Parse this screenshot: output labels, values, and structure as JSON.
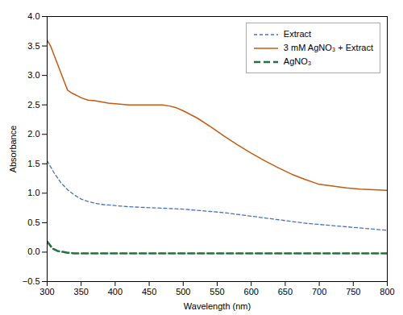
{
  "chart_data": {
    "type": "line",
    "xlabel": "Wavelength (nm)",
    "ylabel": "Absorbance",
    "xlim": [
      300,
      800
    ],
    "ylim": [
      -0.5,
      4
    ],
    "xticks": [
      300,
      350,
      400,
      450,
      500,
      550,
      600,
      650,
      700,
      750,
      800
    ],
    "yticks": [
      {
        "value": -0.5,
        "label": "−0.5"
      },
      {
        "value": 0,
        "label": "0.0"
      },
      0.5,
      {
        "value": 1,
        "label": "1.0"
      },
      1.5,
      {
        "value": 2,
        "label": "2.0"
      },
      2.5,
      {
        "value": 3,
        "label": "3.0"
      },
      3.5,
      {
        "value": 4,
        "label": "4.0"
      }
    ],
    "grid": false,
    "legend": "upper right",
    "series": [
      {
        "name": "Extract",
        "color": "#4472C4",
        "line_style": "dashed",
        "x": [
          300,
          310,
          320,
          330,
          340,
          350,
          360,
          370,
          380,
          390,
          400,
          420,
          440,
          460,
          480,
          500,
          520,
          540,
          560,
          580,
          600,
          620,
          640,
          660,
          680,
          700,
          720,
          740,
          760,
          780,
          800
        ],
        "values": [
          1.55,
          1.35,
          1.18,
          1.06,
          0.97,
          0.9,
          0.86,
          0.83,
          0.81,
          0.8,
          0.79,
          0.77,
          0.76,
          0.75,
          0.74,
          0.73,
          0.71,
          0.69,
          0.67,
          0.64,
          0.61,
          0.58,
          0.55,
          0.52,
          0.49,
          0.47,
          0.45,
          0.43,
          0.41,
          0.39,
          0.37
        ]
      },
      {
        "name": "3 mM AgNO₃ + Extract",
        "color": "#C55A11",
        "line_style": "solid",
        "x": [
          300,
          305,
          310,
          315,
          320,
          325,
          330,
          335,
          340,
          345,
          350,
          360,
          370,
          380,
          390,
          400,
          420,
          440,
          460,
          470,
          480,
          490,
          500,
          520,
          540,
          560,
          580,
          600,
          620,
          640,
          660,
          680,
          700,
          720,
          740,
          760,
          780,
          800
        ],
        "values": [
          3.6,
          3.5,
          3.35,
          3.2,
          3.05,
          2.9,
          2.75,
          2.71,
          2.68,
          2.65,
          2.62,
          2.58,
          2.57,
          2.55,
          2.53,
          2.52,
          2.5,
          2.5,
          2.5,
          2.5,
          2.48,
          2.45,
          2.4,
          2.28,
          2.13,
          1.97,
          1.82,
          1.68,
          1.55,
          1.43,
          1.32,
          1.23,
          1.15,
          1.12,
          1.09,
          1.07,
          1.06,
          1.05
        ]
      },
      {
        "name": "AgNO₃",
        "color": "#207040",
        "line_style": "longdashed",
        "x": [
          300,
          308,
          315,
          320,
          330,
          340,
          350,
          400,
          450,
          500,
          600,
          700,
          800
        ],
        "values": [
          0.18,
          0.06,
          0.02,
          0.01,
          -0.01,
          -0.02,
          -0.02,
          -0.02,
          -0.02,
          -0.02,
          -0.02,
          -0.02,
          -0.02
        ]
      }
    ]
  }
}
